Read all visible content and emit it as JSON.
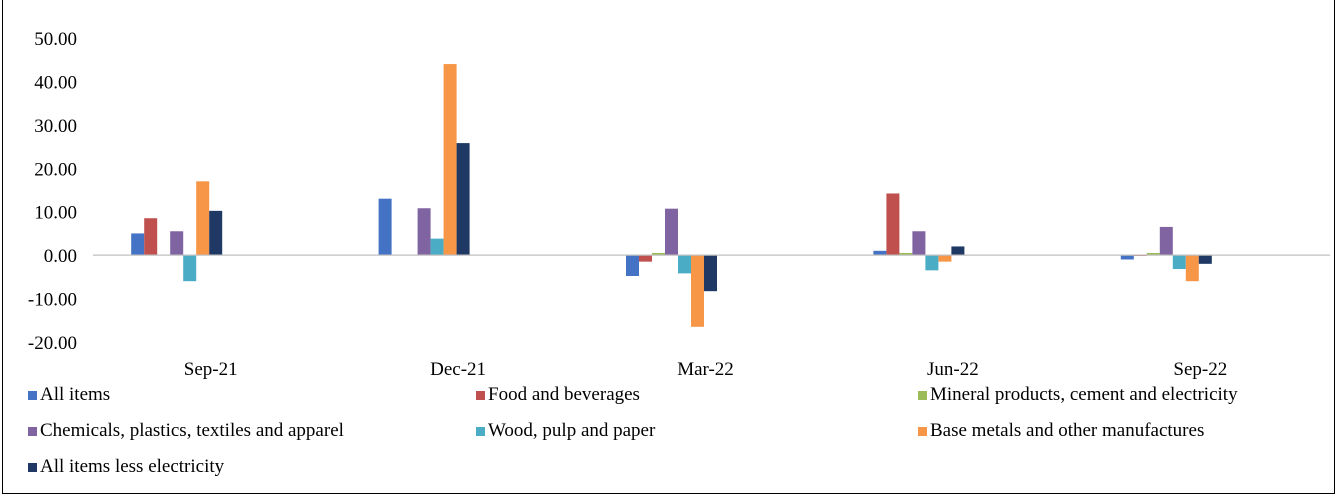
{
  "title": "",
  "chart_data": {
    "type": "bar",
    "categories": [
      "Sep-21",
      "Dec-21",
      "Mar-22",
      "Jun-22",
      "Sep-22"
    ],
    "ylim": [
      -20,
      50
    ],
    "yticks": [
      50,
      40,
      30,
      20,
      10,
      0,
      -10,
      -20
    ],
    "ytick_labels": [
      "50.00",
      "40.00",
      "30.00",
      "20.00",
      "10.00",
      "0.00",
      "-10.00",
      "-20.00"
    ],
    "grid": false,
    "legend_position": "bottom",
    "series": [
      {
        "name": "All items",
        "color": "#4472C4",
        "values": [
          5.0,
          13.0,
          -4.8,
          1.0,
          -1.0
        ]
      },
      {
        "name": "Food and beverages",
        "color": "#C0504D",
        "values": [
          8.5,
          0.0,
          -1.5,
          14.2,
          -0.2
        ]
      },
      {
        "name": "Mineral products, cement and electricity",
        "color": "#9BBB59",
        "values": [
          0.0,
          0.0,
          0.5,
          0.5,
          0.5
        ]
      },
      {
        "name": "Chemicals, plastics, textiles and apparel",
        "color": "#8064A2",
        "values": [
          5.5,
          10.8,
          10.7,
          5.5,
          6.5
        ]
      },
      {
        "name": "Wood, pulp and paper",
        "color": "#4BACC6",
        "values": [
          -6.0,
          3.8,
          -4.2,
          -3.5,
          -3.2
        ]
      },
      {
        "name": "Base metals and other manufactures",
        "color": "#F79646",
        "values": [
          17.0,
          44.0,
          -16.5,
          -1.5,
          -6.0
        ]
      },
      {
        "name": "All items less electricity",
        "color": "#1F3864",
        "values": [
          10.2,
          25.8,
          -8.3,
          2.0,
          -2.0
        ]
      }
    ]
  }
}
